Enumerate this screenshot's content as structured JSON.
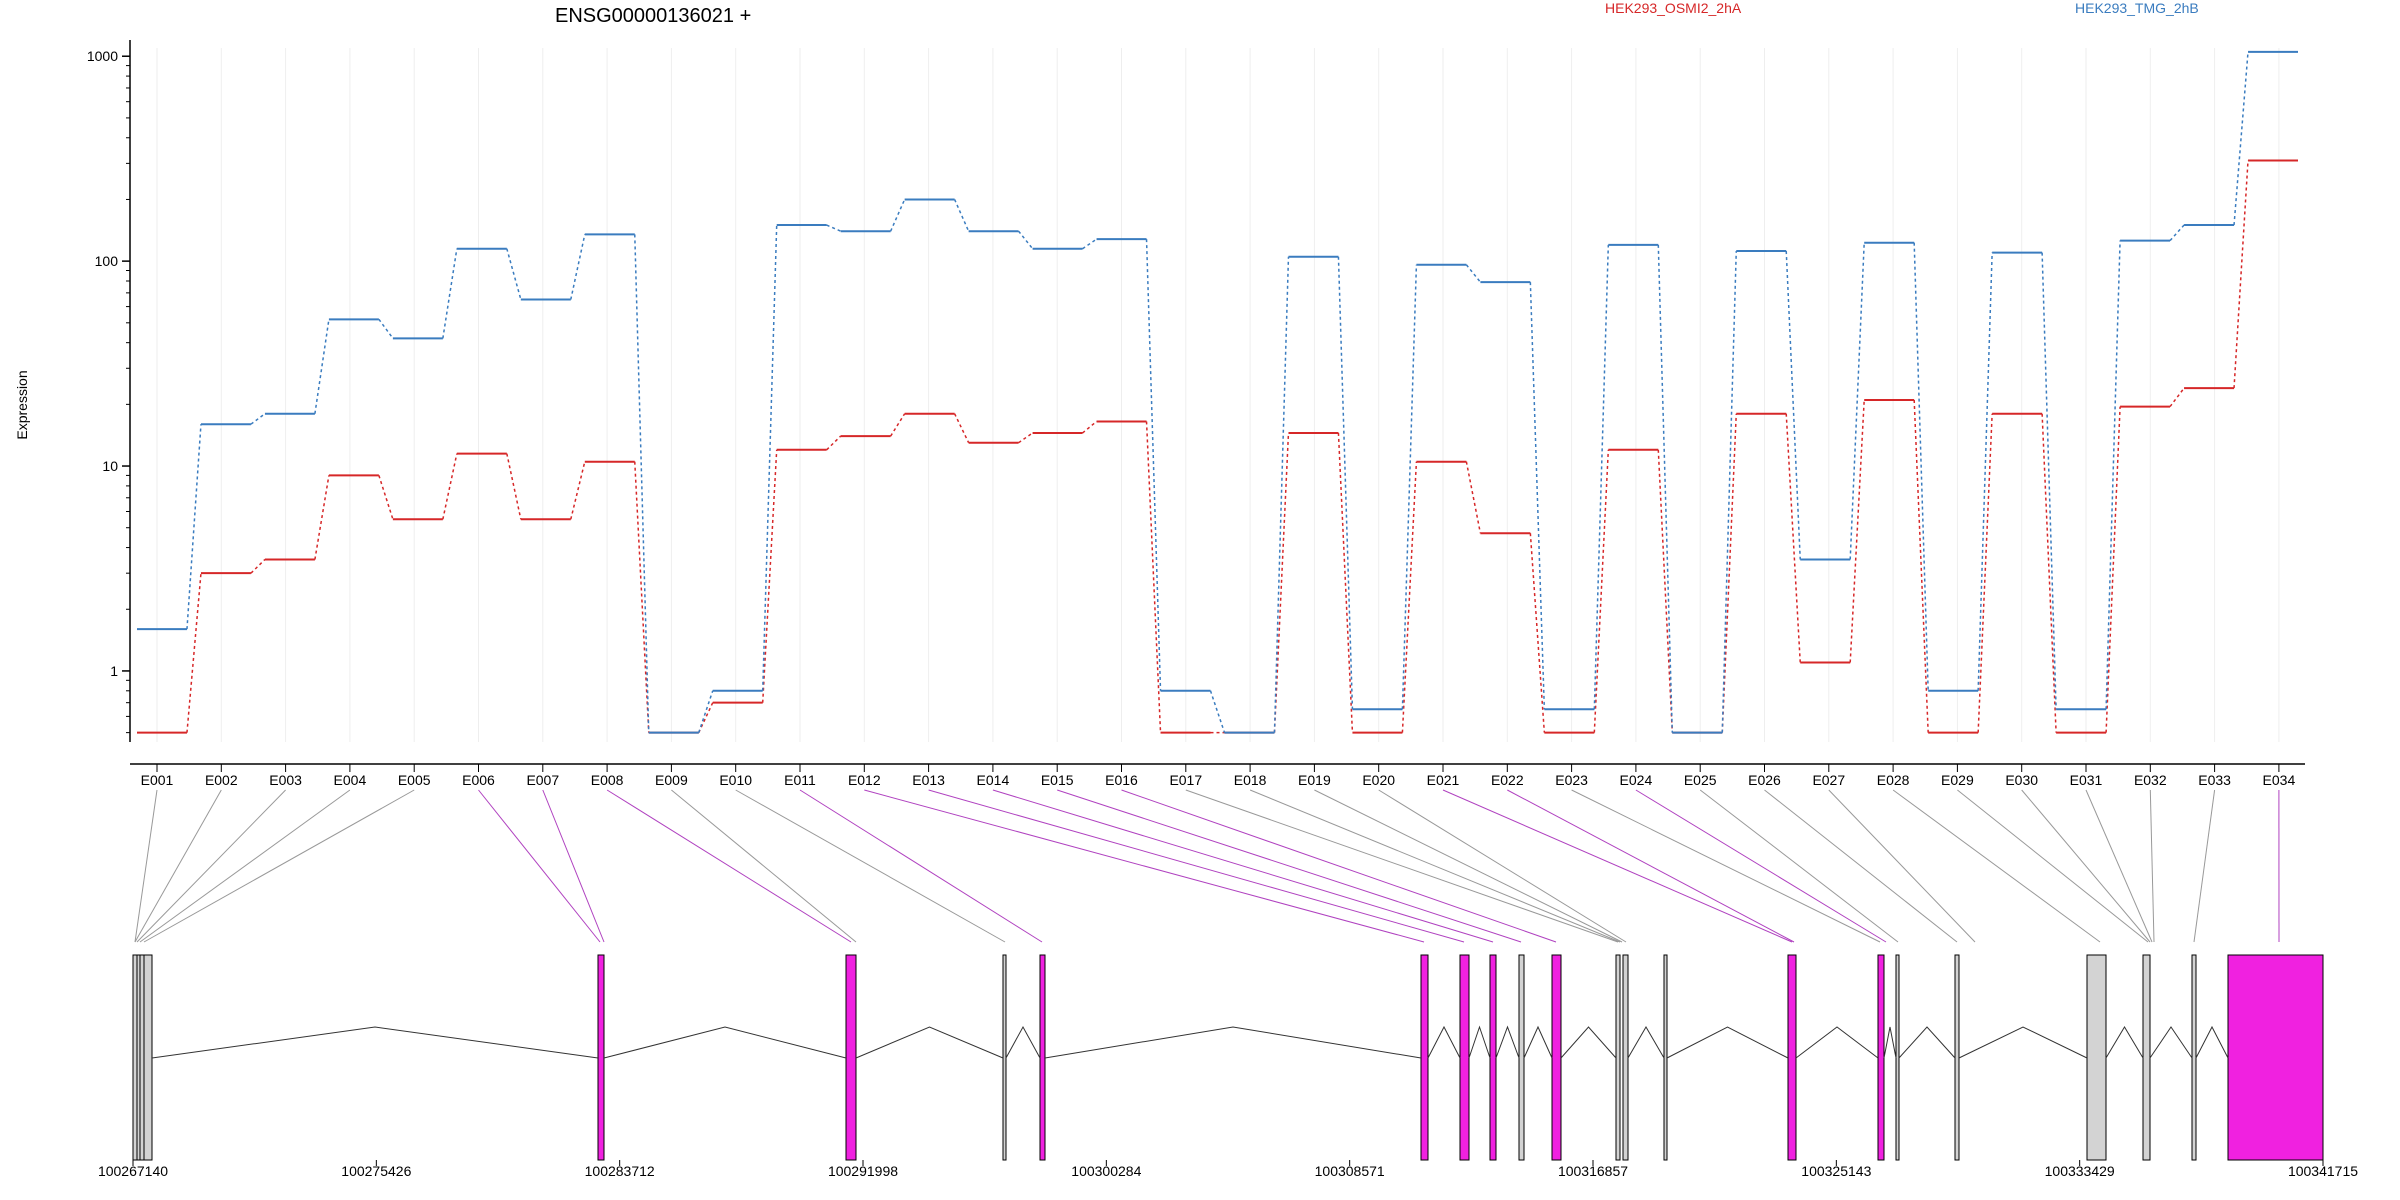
{
  "chart_data": {
    "type": "line",
    "title": "ENSG00000136021 +",
    "ylabel": "Expression",
    "yscale": "log",
    "ylim": [
      0.45,
      1200
    ],
    "yticks": [
      1,
      10,
      100,
      1000
    ],
    "grid": true,
    "legend_position": "top",
    "categories": [
      "E001",
      "E002",
      "E003",
      "E004",
      "E005",
      "E006",
      "E007",
      "E008",
      "E009",
      "E010",
      "E011",
      "E012",
      "E013",
      "E014",
      "E015",
      "E016",
      "E017",
      "E018",
      "E019",
      "E020",
      "E021",
      "E022",
      "E023",
      "E024",
      "E025",
      "E026",
      "E027",
      "E028",
      "E029",
      "E030",
      "E031",
      "E032",
      "E033",
      "E034"
    ],
    "series": [
      {
        "name": "HEK293_OSMI2_2hA",
        "color": "#d62728",
        "values": [
          0.5,
          3.0,
          3.5,
          9.0,
          5.5,
          11.5,
          5.5,
          10.5,
          0.5,
          0.7,
          12,
          14,
          18,
          13,
          14.5,
          16.5,
          0.5,
          0.5,
          14.5,
          0.5,
          10.5,
          4.7,
          0.5,
          12,
          0.5,
          18,
          1.1,
          21,
          0.5,
          18,
          0.5,
          19.5,
          24,
          310
        ]
      },
      {
        "name": "HEK293_TMG_2hB",
        "color": "#3a7cbf",
        "values": [
          1.6,
          16,
          18,
          52,
          42,
          115,
          65,
          135,
          0.5,
          0.8,
          150,
          140,
          200,
          140,
          115,
          128,
          0.8,
          0.5,
          105,
          0.65,
          96,
          79,
          0.65,
          120,
          0.5,
          112,
          3.5,
          123,
          0.8,
          110,
          0.65,
          126,
          150,
          1050
        ]
      }
    ],
    "gene_model": {
      "coordinate_ticks": [
        "100267140",
        "100275426",
        "100283712",
        "100291998",
        "100300284",
        "100308571",
        "100316857",
        "100325143",
        "100333429",
        "100341715"
      ],
      "exon_colors": {
        "significant": "#f021e0",
        "other": "#d3d3d3"
      },
      "significant_exons": [
        "E006",
        "E007",
        "E008",
        "E011",
        "E012",
        "E013",
        "E014",
        "E015",
        "E016",
        "E021",
        "E022",
        "E024",
        "E034"
      ]
    }
  }
}
